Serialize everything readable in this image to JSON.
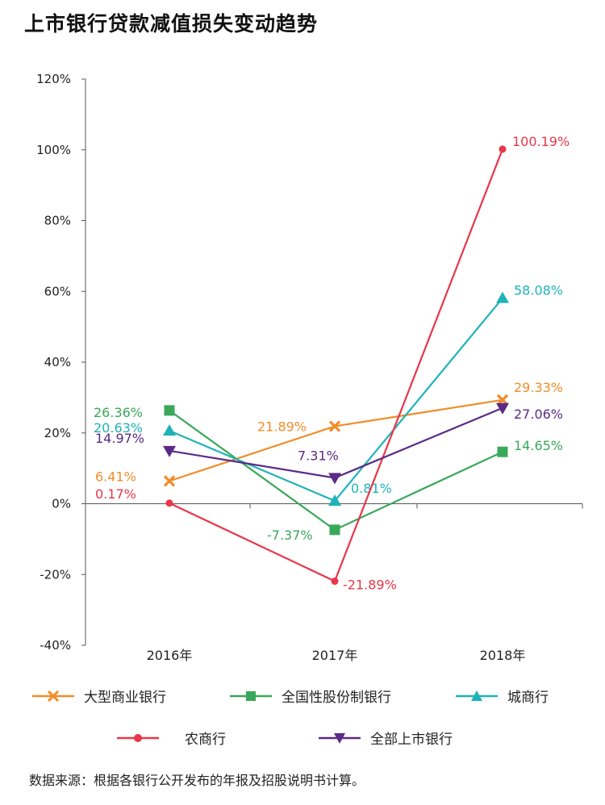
{
  "title": "上市银行贷款减值损失变动趋势",
  "source": "数据来源：根据各银行公开发布的年报及招股说明书计算。",
  "chart_data": {
    "type": "line",
    "x": [
      "2016年",
      "2017年",
      "2018年"
    ],
    "ylim": [
      -40,
      120
    ],
    "yticks": [
      -40,
      -20,
      0,
      20,
      40,
      60,
      80,
      100,
      120
    ],
    "ytick_labels": [
      "-40%",
      "-20%",
      "0%",
      "20%",
      "40%",
      "60%",
      "80%",
      "100%",
      "120%"
    ],
    "legend_position": "bottom",
    "series": [
      {
        "name": "大型商业银行",
        "color": "#f28c28",
        "marker": "x",
        "values": [
          6.41,
          21.89,
          29.33
        ],
        "labels": [
          "6.41%",
          "21.89%",
          "29.33%"
        ]
      },
      {
        "name": "全国性股份制银行",
        "color": "#3aa85a",
        "marker": "square",
        "values": [
          26.36,
          -7.37,
          14.65
        ],
        "labels": [
          "26.36%",
          "-7.37%",
          "14.65%"
        ]
      },
      {
        "name": "城商行",
        "color": "#1fb3b8",
        "marker": "triangle",
        "values": [
          20.63,
          0.81,
          58.08
        ],
        "labels": [
          "20.63%",
          "0.81%",
          "58.08%"
        ]
      },
      {
        "name": "农商行",
        "color": "#e8364a",
        "marker": "circle",
        "values": [
          0.17,
          -21.89,
          100.19
        ],
        "labels": [
          "0.17%",
          "-21.89%",
          "100.19%"
        ]
      },
      {
        "name": "全部上市银行",
        "color": "#5b2a86",
        "marker": "triangle-down",
        "values": [
          14.97,
          7.31,
          27.06
        ],
        "labels": [
          "14.97%",
          "7.31%",
          "27.06%"
        ]
      }
    ]
  }
}
